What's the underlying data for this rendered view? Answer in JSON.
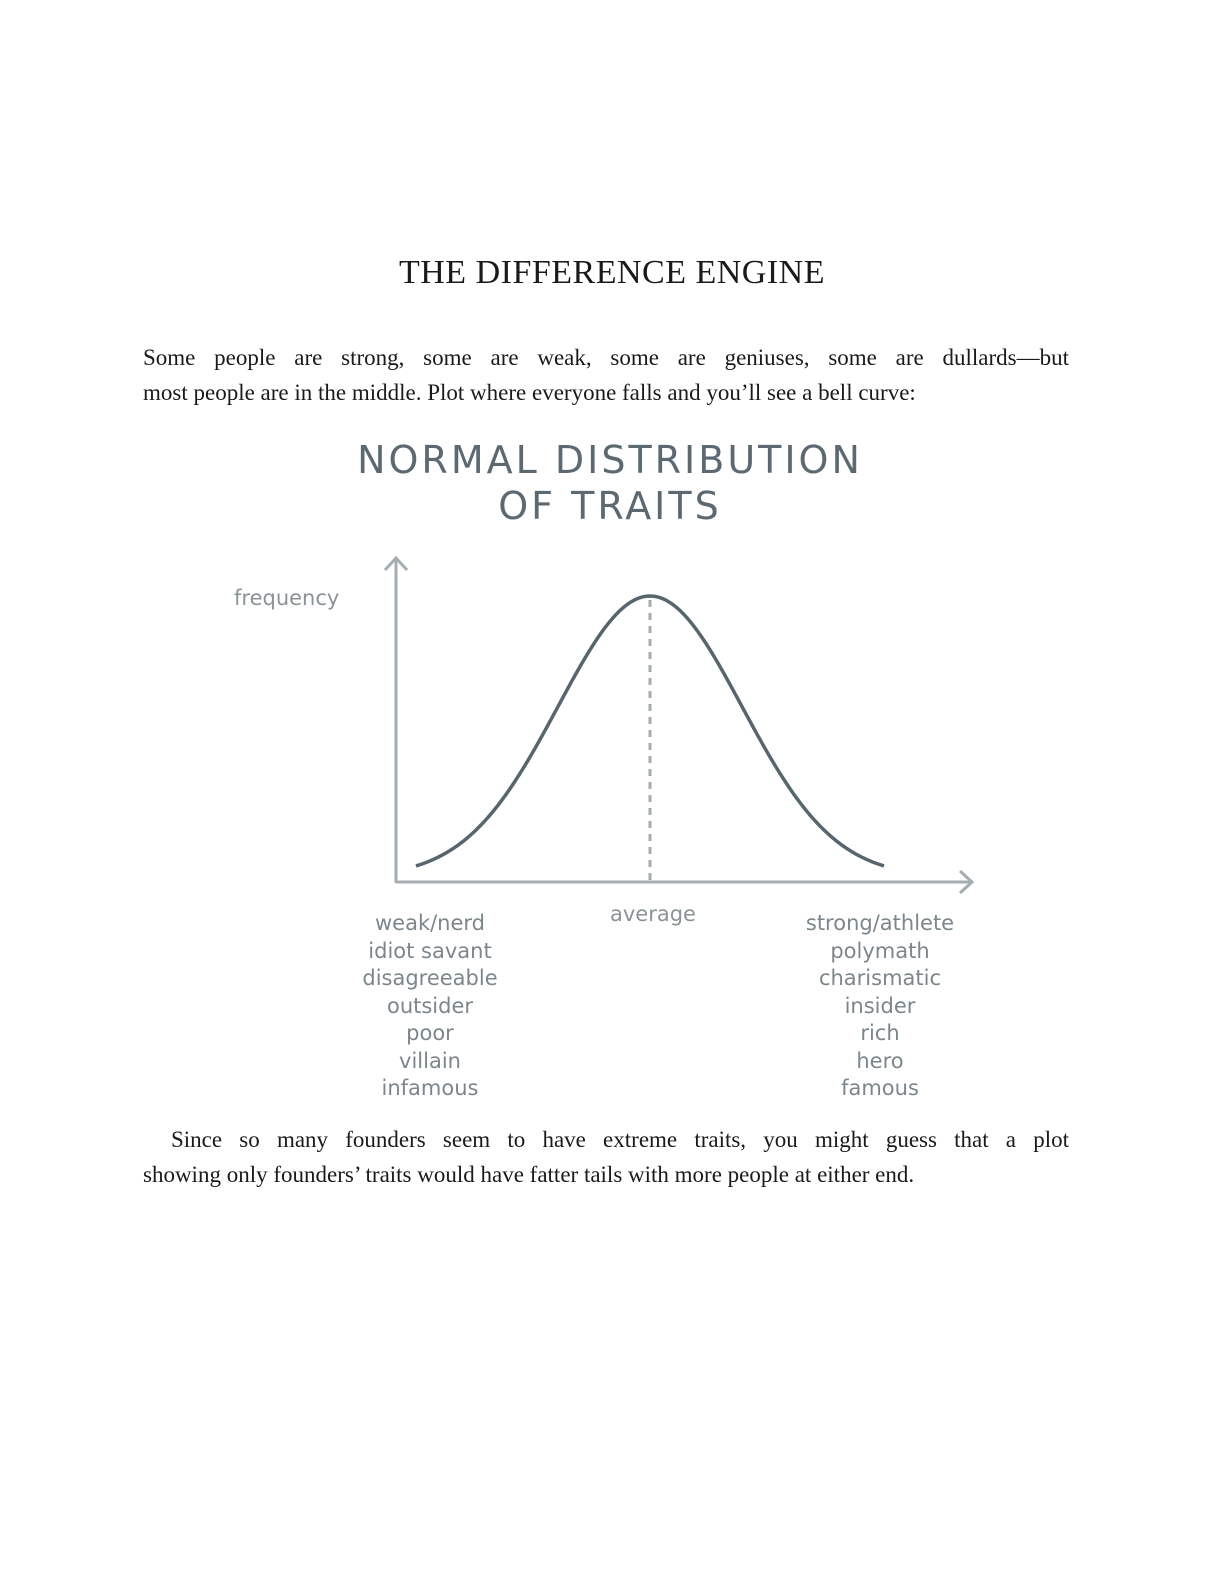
{
  "page": {
    "chapter_title": "THE DIFFERENCE ENGINE",
    "paragraph_1": [
      "Some people are strong, some are weak, some are geniuses, some are dullards—but",
      "most people are in the middle. Plot where everyone falls and you’ll see a bell curve:"
    ],
    "paragraph_2": [
      "Since so many founders seem to have extreme traits, you might guess that a plot",
      "showing only founders’ traits would have fatter tails with more people at either end."
    ]
  },
  "figure": {
    "title_line_1": "NORMAL DISTRIBUTION",
    "title_line_2": "OF TRAITS",
    "y_axis_label": "frequency",
    "center_label": "average",
    "left_traits": [
      "weak/nerd",
      "idiot savant",
      "disagreeable",
      "outsider",
      "poor",
      "villain",
      "infamous"
    ],
    "right_traits": [
      "strong/athlete",
      "polymath",
      "charismatic",
      "insider",
      "rich",
      "hero",
      "famous"
    ],
    "colors": {
      "curve": "#56666e",
      "axis": "#a4aeb2",
      "title": "#5b6a72",
      "label": "#7c878c"
    }
  }
}
